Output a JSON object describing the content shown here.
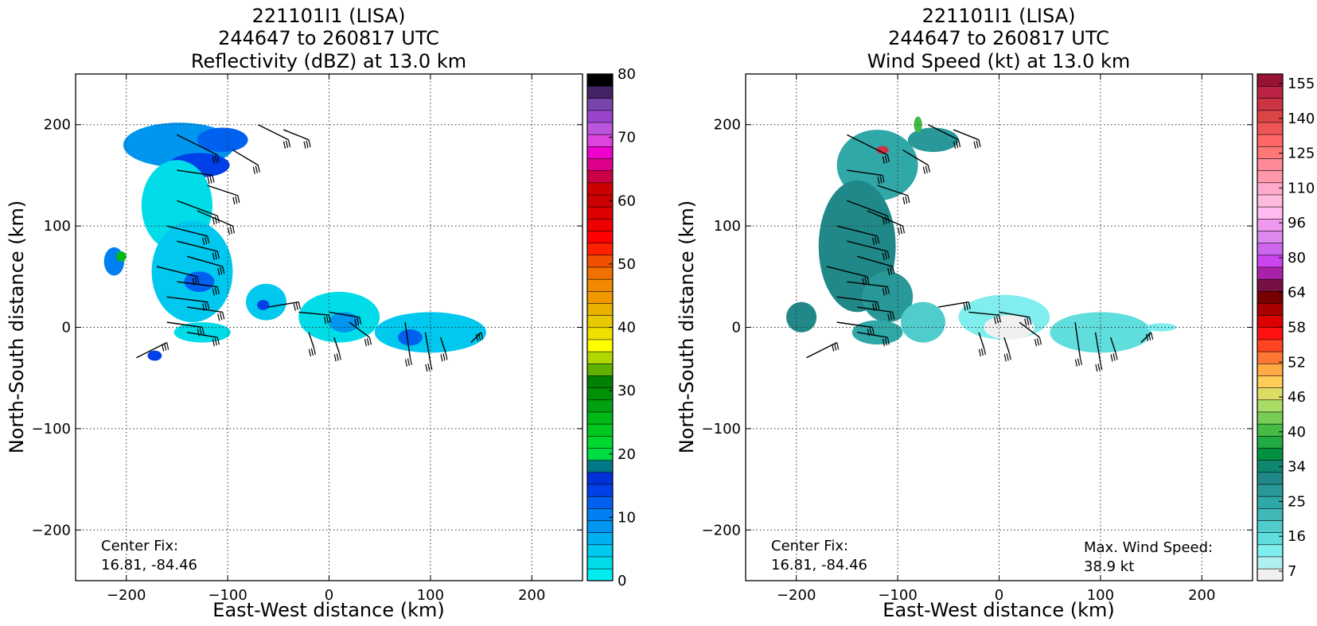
{
  "chart_data": [
    {
      "type": "heatmap",
      "title_lines": [
        "221101I1 (LISA)",
        "244647 to 260817 UTC",
        "Reflectivity (dBZ) at 13.0 km"
      ],
      "xlabel": "East-West distance (km)",
      "ylabel": "North-South distance (km)",
      "xlim": [
        -250,
        250
      ],
      "ylim": [
        -250,
        250
      ],
      "xticks": [
        -200,
        -100,
        0,
        100,
        200
      ],
      "yticks": [
        -200,
        -100,
        0,
        100,
        200
      ],
      "grid": true,
      "annotations": [
        "Center Fix:",
        "16.81, -84.46"
      ],
      "colorbar": {
        "label": "",
        "range": [
          0,
          80
        ],
        "ticks": [
          0,
          10,
          20,
          30,
          40,
          50,
          60,
          70,
          80
        ],
        "colors": [
          "#00eeee",
          "#00dde8",
          "#00c8ee",
          "#00b0f0",
          "#0096f0",
          "#0080f0",
          "#0060f0",
          "#0040e8",
          "#0030d8",
          "#007888",
          "#00dd44",
          "#00d830",
          "#00c820",
          "#00b818",
          "#00a010",
          "#009008",
          "#008000",
          "#60b000",
          "#b0d800",
          "#ffff00",
          "#f0e000",
          "#e8c800",
          "#e8b000",
          "#f09800",
          "#f08800",
          "#f07000",
          "#f05000",
          "#ff2000",
          "#ff0000",
          "#ee0000",
          "#dd0000",
          "#cc0000",
          "#cc0000",
          "#cc0044",
          "#dd0088",
          "#ee00cc",
          "#dd44dd",
          "#bb55dd",
          "#9944cc",
          "#7744aa",
          "#442266",
          "#000000"
        ]
      },
      "echoes": [
        {
          "x": -148,
          "y": 180,
          "rx": 55,
          "ry": 22,
          "color": "#0096f0"
        },
        {
          "x": -128,
          "y": 160,
          "rx": 30,
          "ry": 12,
          "color": "#0040e8"
        },
        {
          "x": -150,
          "y": 120,
          "rx": 35,
          "ry": 45,
          "color": "#00dde8"
        },
        {
          "x": -135,
          "y": 55,
          "rx": 40,
          "ry": 50,
          "color": "#00c8ee"
        },
        {
          "x": -128,
          "y": 45,
          "rx": 15,
          "ry": 10,
          "color": "#0060f0"
        },
        {
          "x": -105,
          "y": 185,
          "rx": 25,
          "ry": 12,
          "color": "#0060f0"
        },
        {
          "x": -212,
          "y": 65,
          "rx": 10,
          "ry": 14,
          "color": "#0080f0"
        },
        {
          "x": -205,
          "y": 70,
          "rx": 5,
          "ry": 5,
          "color": "#00b818"
        },
        {
          "x": -62,
          "y": 25,
          "rx": 20,
          "ry": 18,
          "color": "#00c8ee"
        },
        {
          "x": -65,
          "y": 22,
          "rx": 6,
          "ry": 5,
          "color": "#0040e8"
        },
        {
          "x": 10,
          "y": 10,
          "rx": 40,
          "ry": 25,
          "color": "#00dde8"
        },
        {
          "x": 15,
          "y": 5,
          "rx": 15,
          "ry": 10,
          "color": "#0096f0"
        },
        {
          "x": 100,
          "y": -5,
          "rx": 55,
          "ry": 20,
          "color": "#00c8ee"
        },
        {
          "x": 80,
          "y": -10,
          "rx": 12,
          "ry": 8,
          "color": "#0060f0"
        },
        {
          "x": -125,
          "y": -5,
          "rx": 28,
          "ry": 10,
          "color": "#00dde8"
        },
        {
          "x": -172,
          "y": -28,
          "rx": 7,
          "ry": 5,
          "color": "#0040e8"
        }
      ]
    },
    {
      "type": "heatmap",
      "title_lines": [
        "221101I1 (LISA)",
        "244647 to 260817 UTC",
        "Wind Speed (kt) at 13.0 km"
      ],
      "xlabel": "East-West distance (km)",
      "ylabel": "North-South distance (km)",
      "xlim": [
        -250,
        250
      ],
      "ylim": [
        -250,
        250
      ],
      "xticks": [
        -200,
        -100,
        0,
        100,
        200
      ],
      "yticks": [
        -200,
        -100,
        0,
        100,
        200
      ],
      "grid": true,
      "annotations": [
        "Center Fix:",
        "16.81, -84.46",
        "Max. Wind Speed:",
        "38.9 kt"
      ],
      "colorbar": {
        "label": "",
        "ticks": [
          7,
          16,
          25,
          34,
          40,
          46,
          52,
          58,
          64,
          80,
          96,
          110,
          125,
          140,
          155
        ],
        "colors": [
          "#f0f0f0",
          "#b0f0f0",
          "#80eeee",
          "#60dddd",
          "#50cccc",
          "#40b8b8",
          "#30a8a8",
          "#289898",
          "#208888",
          "#108870",
          "#009040",
          "#22aa44",
          "#44bb44",
          "#77cc55",
          "#aadd66",
          "#dddd66",
          "#ffcc55",
          "#ffaa44",
          "#ff7733",
          "#ff4422",
          "#ff1111",
          "#dd0000",
          "#aa0000",
          "#770000",
          "#771144",
          "#aa22aa",
          "#cc44ee",
          "#cc66ee",
          "#dd88ee",
          "#ee99ee",
          "#ffbbee",
          "#ffbbdd",
          "#ffaacc",
          "#ff99aa",
          "#ff8899",
          "#ff7777",
          "#ff6666",
          "#ee5555",
          "#dd4444",
          "#cc3344",
          "#bb2244",
          "#991133"
        ]
      },
      "echoes": [
        {
          "x": -120,
          "y": 160,
          "rx": 40,
          "ry": 35,
          "color": "#30a8a8"
        },
        {
          "x": -140,
          "y": 80,
          "rx": 38,
          "ry": 65,
          "color": "#208888"
        },
        {
          "x": -110,
          "y": 30,
          "rx": 25,
          "ry": 25,
          "color": "#289898"
        },
        {
          "x": -120,
          "y": -5,
          "rx": 25,
          "ry": 12,
          "color": "#30a8a8"
        },
        {
          "x": -195,
          "y": 10,
          "rx": 15,
          "ry": 15,
          "color": "#208888"
        },
        {
          "x": -65,
          "y": 185,
          "rx": 25,
          "ry": 12,
          "color": "#289898"
        },
        {
          "x": -75,
          "y": 5,
          "rx": 22,
          "ry": 20,
          "color": "#50cccc"
        },
        {
          "x": 5,
          "y": 10,
          "rx": 45,
          "ry": 22,
          "color": "#80eeee"
        },
        {
          "x": 10,
          "y": 0,
          "rx": 25,
          "ry": 12,
          "color": "#f0f0f0"
        },
        {
          "x": 100,
          "y": -5,
          "rx": 50,
          "ry": 20,
          "color": "#60dddd"
        },
        {
          "x": 160,
          "y": 0,
          "rx": 15,
          "ry": 4,
          "color": "#80eeee"
        },
        {
          "x": -80,
          "y": 200,
          "rx": 4,
          "ry": 8,
          "color": "#44bb44"
        },
        {
          "x": -115,
          "y": 175,
          "rx": 6,
          "ry": 4,
          "color": "#cc3344"
        }
      ]
    }
  ]
}
